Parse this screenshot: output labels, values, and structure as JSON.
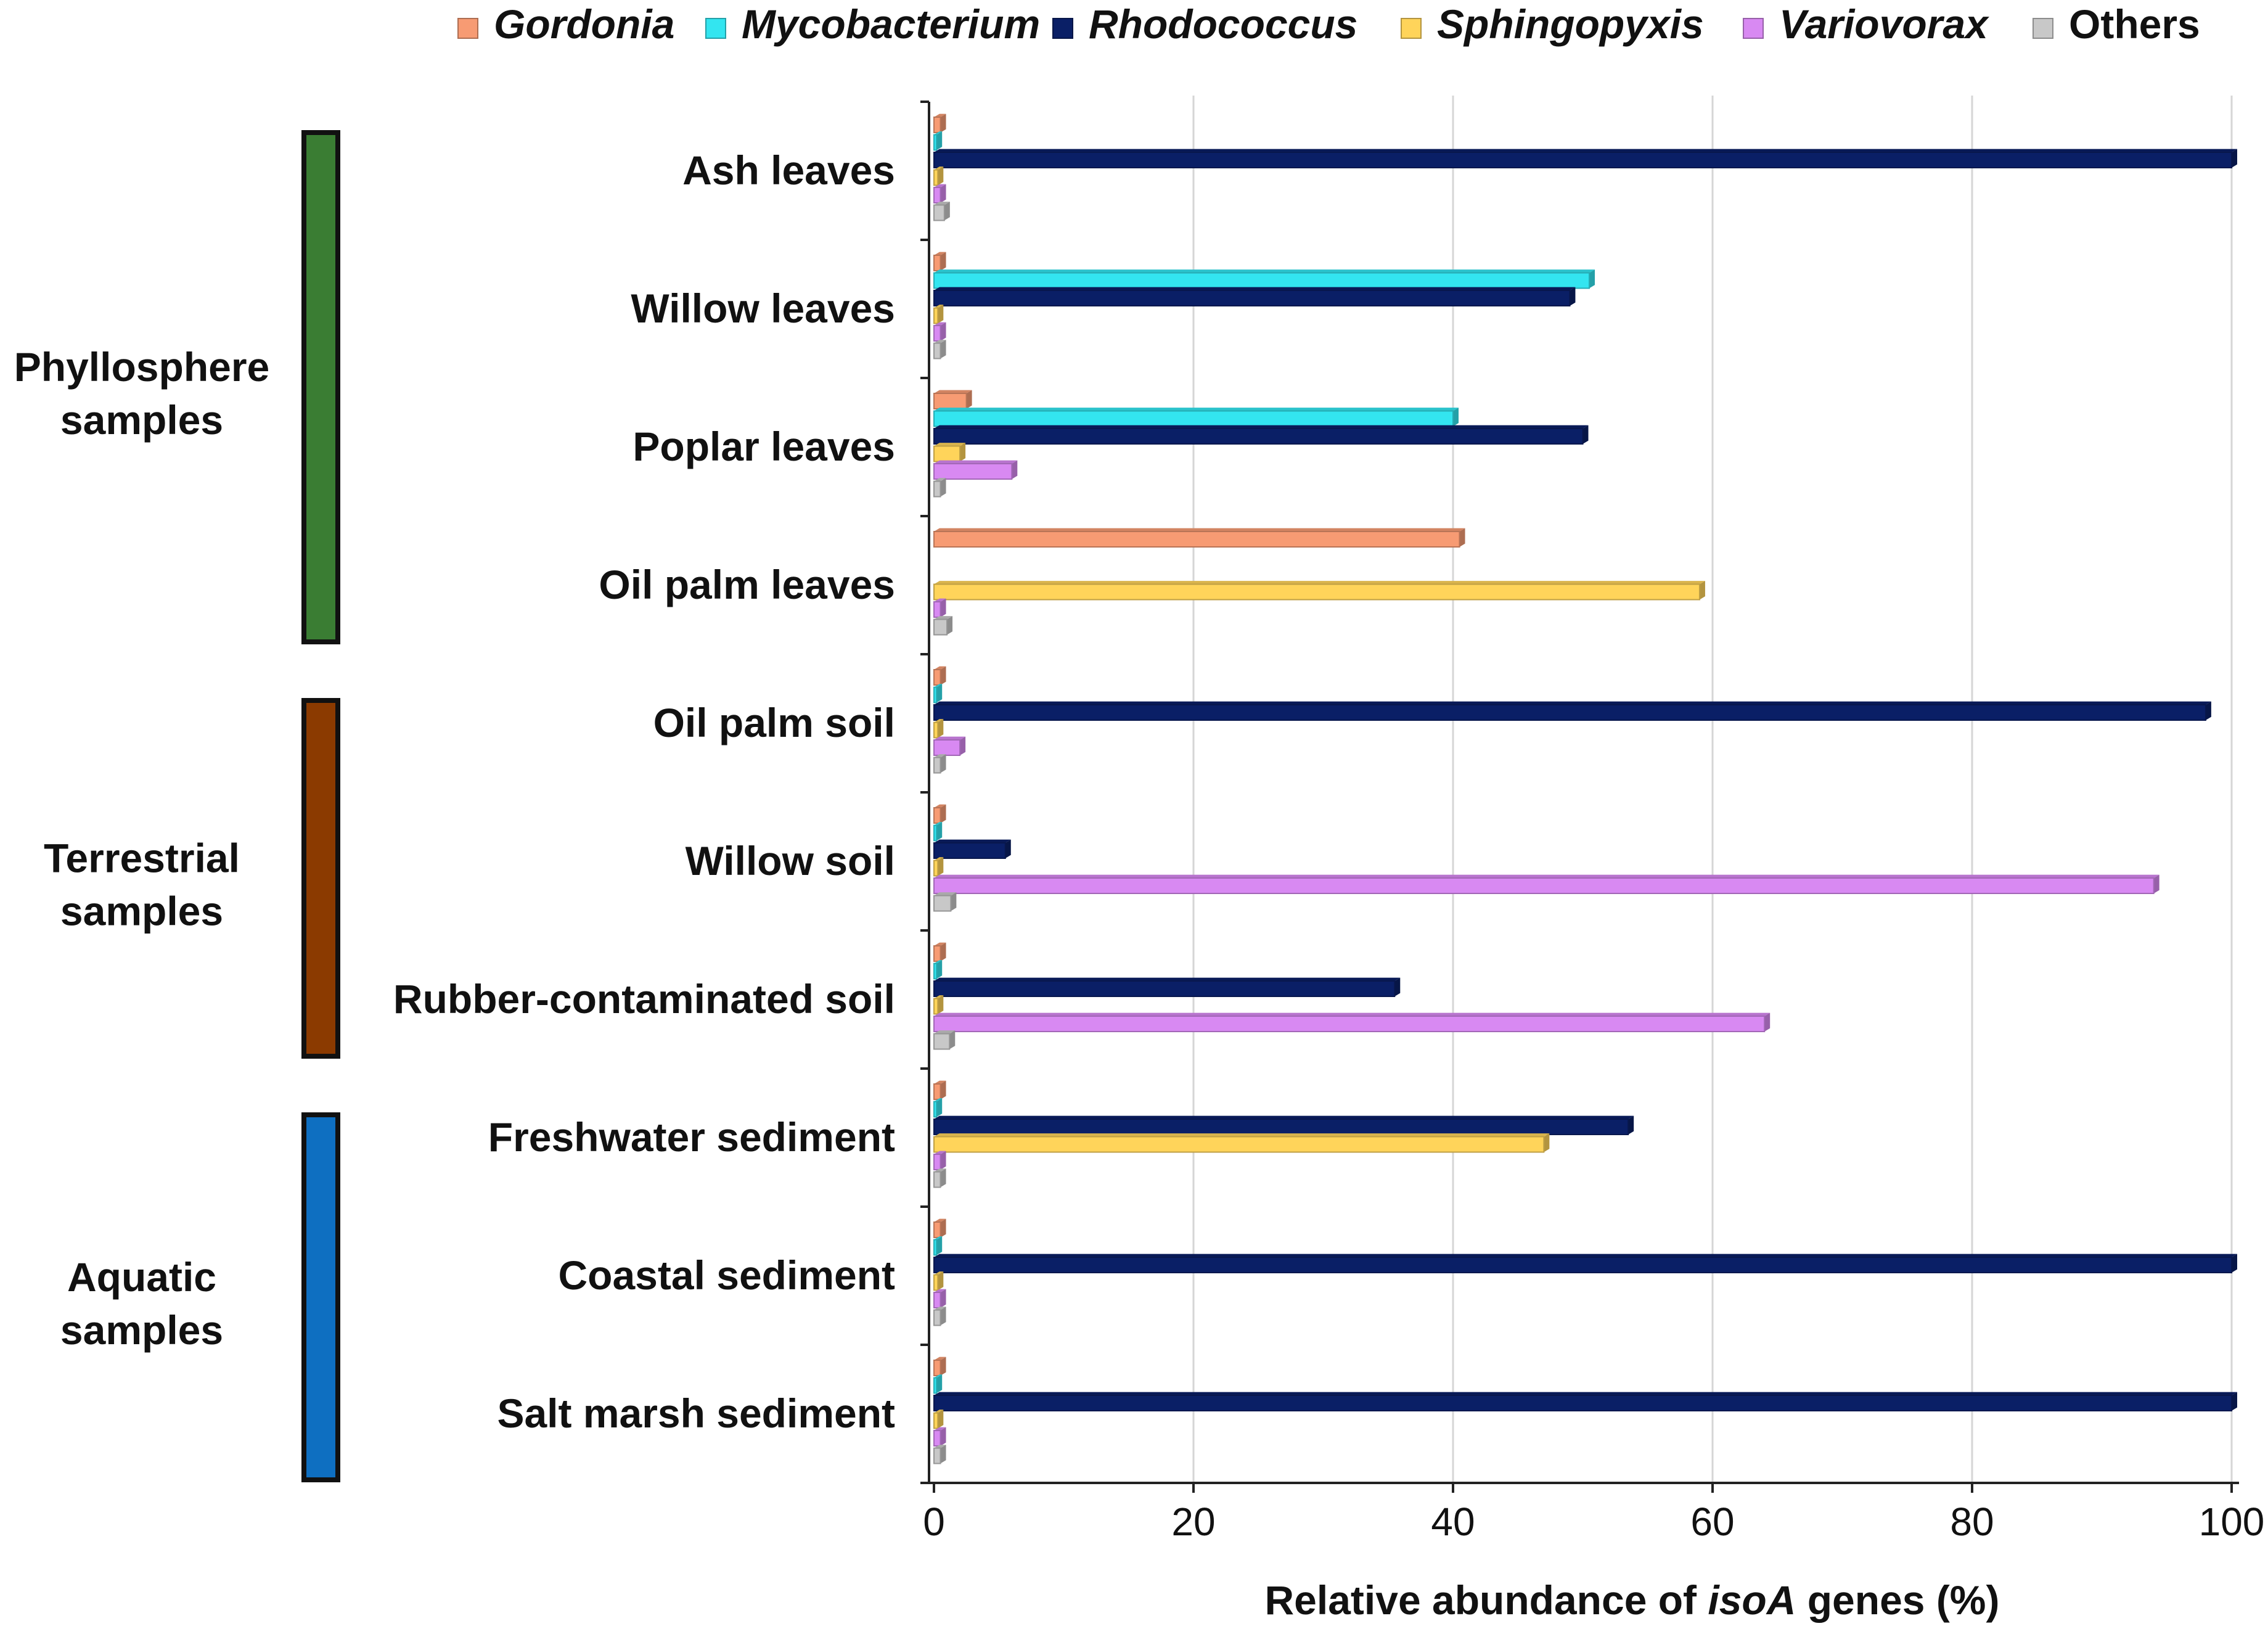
{
  "chart_data": {
    "type": "bar",
    "orientation": "horizontal",
    "title": "",
    "xlabel_parts": [
      "Relative abundance of ",
      "isoA",
      " genes (%)"
    ],
    "ylabel": "",
    "xlim": [
      0,
      100
    ],
    "xticks": [
      0,
      20,
      40,
      60,
      80,
      100
    ],
    "xtick_labels": [
      "0",
      "20",
      "40",
      "60",
      "80",
      "100"
    ],
    "grid": true,
    "legend_position": "top",
    "categories": [
      "Ash leaves",
      "Willow leaves",
      "Poplar leaves",
      "Oil palm leaves",
      "Oil palm soil",
      "Willow soil",
      "Rubber-contaminated soil",
      "Freshwater sediment",
      "Coastal sediment",
      "Salt marsh sediment"
    ],
    "series": [
      {
        "name": "Gordonia",
        "italic": true,
        "color": "#F79B73",
        "values": [
          0.5,
          0.5,
          2.5,
          40.5,
          0.5,
          0.5,
          0.5,
          0.5,
          0.5,
          0.5
        ]
      },
      {
        "name": "Mycobacterium",
        "italic": true,
        "color": "#33E5F0",
        "values": [
          0.2,
          50.5,
          40.0,
          0,
          0.2,
          0.2,
          0.2,
          0.2,
          0.2,
          0.2
        ]
      },
      {
        "name": "Rhodococcus",
        "italic": true,
        "color": "#0A1F66",
        "values": [
          100,
          49.0,
          50.0,
          0,
          98.0,
          5.5,
          35.5,
          53.5,
          100,
          100
        ]
      },
      {
        "name": "Sphingopyxis",
        "italic": true,
        "color": "#FFD45A",
        "values": [
          0.3,
          0.3,
          2.0,
          59.0,
          0.3,
          0.3,
          0.3,
          47.0,
          0.3,
          0.3
        ]
      },
      {
        "name": "Variovorax",
        "italic": true,
        "color": "#D889F2",
        "values": [
          0.5,
          0.5,
          6.0,
          0.5,
          2.0,
          94.0,
          64.0,
          0.5,
          0.5,
          0.5
        ]
      },
      {
        "name": "Others",
        "italic": false,
        "color": "#C8C8C8",
        "values": [
          0.8,
          0.5,
          0.5,
          1.0,
          0.5,
          1.3,
          1.2,
          0.5,
          0.5,
          0.5
        ]
      }
    ],
    "groups": [
      {
        "label_lines": [
          "Phyllosphere",
          "samples"
        ],
        "color": "#3A7D33",
        "categories": [
          "Ash leaves",
          "Willow leaves",
          "Poplar leaves",
          "Oil palm leaves"
        ]
      },
      {
        "label_lines": [
          "Terrestrial",
          "samples"
        ],
        "color": "#8B3A00",
        "categories": [
          "Oil palm soil",
          "Willow soil",
          "Rubber-contaminated soil"
        ]
      },
      {
        "label_lines": [
          "Aquatic",
          "samples"
        ],
        "color": "#0E6FC1",
        "categories": [
          "Freshwater sediment",
          "Coastal sediment",
          "Salt marsh sediment"
        ]
      }
    ]
  }
}
